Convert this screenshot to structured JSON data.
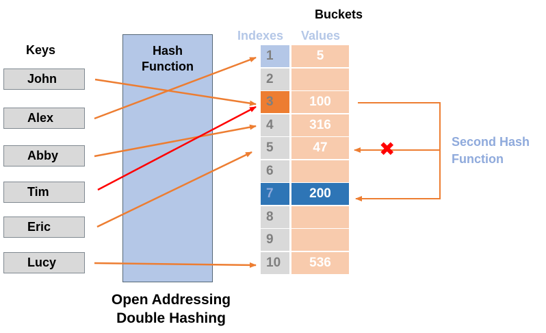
{
  "headings": {
    "buckets": "Buckets",
    "keys": "Keys",
    "indexes": "Indexes",
    "values": "Values"
  },
  "hash_function_label": "Hash\nFunction",
  "keys": [
    "John",
    "Alex",
    "Abby",
    "Tim",
    "Eric",
    "Lucy"
  ],
  "buckets": [
    {
      "index": "1",
      "value": "5"
    },
    {
      "index": "2",
      "value": ""
    },
    {
      "index": "3",
      "value": "100"
    },
    {
      "index": "4",
      "value": "316"
    },
    {
      "index": "5",
      "value": "47"
    },
    {
      "index": "6",
      "value": ""
    },
    {
      "index": "7",
      "value": "200"
    },
    {
      "index": "8",
      "value": ""
    },
    {
      "index": "9",
      "value": ""
    },
    {
      "index": "10",
      "value": "536"
    }
  ],
  "second_hash_label": "Second Hash\nFunction",
  "title": "Open Addressing\nDouble Hashing",
  "collision_mark": "✖",
  "colors": {
    "index_default": "#d9d9d9",
    "index_first": "#b4c7e7",
    "index_collision": "#ed7d31",
    "index_resolved": "#2e75b6",
    "value_default": "#f8cbad",
    "value_resolved": "#2e75b6",
    "arrow_orange": "#ed7d31",
    "arrow_red": "#ff0000"
  }
}
